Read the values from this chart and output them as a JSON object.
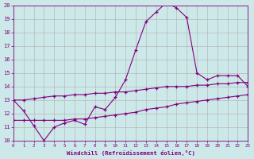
{
  "xlabel": "Windchill (Refroidissement éolien,°C)",
  "background_color": "#cde8e8",
  "line_color": "#800080",
  "xlim": [
    0,
    23
  ],
  "ylim": [
    10,
    20
  ],
  "xtick_labels": [
    "0",
    "1",
    "2",
    "3",
    "4",
    "5",
    "6",
    "7",
    "8",
    "9",
    "10",
    "11",
    "12",
    "13",
    "14",
    "15",
    "16",
    "17",
    "18",
    "19",
    "20",
    "21",
    "22",
    "23"
  ],
  "ytick_labels": [
    "10",
    "11",
    "12",
    "13",
    "14",
    "15",
    "16",
    "17",
    "18",
    "19",
    "20"
  ],
  "curve1_x": [
    0,
    1,
    2,
    3,
    4,
    5,
    6,
    7,
    8,
    9,
    10,
    11,
    12,
    13,
    14,
    15,
    16,
    17,
    18,
    19,
    20,
    21,
    22,
    23
  ],
  "curve1_y": [
    13.0,
    12.2,
    11.1,
    10.0,
    11.0,
    11.3,
    11.5,
    11.2,
    12.5,
    12.3,
    13.2,
    14.5,
    16.7,
    18.8,
    19.5,
    20.2,
    19.8,
    19.1,
    15.0,
    14.5,
    14.8,
    14.8,
    14.8,
    14.0
  ],
  "curve2_x": [
    0,
    1,
    2,
    3,
    4,
    5,
    6,
    7,
    8,
    9,
    10,
    11,
    12,
    13,
    14,
    15,
    16,
    17,
    18,
    19,
    20,
    21,
    22,
    23
  ],
  "curve2_y": [
    13.0,
    13.0,
    13.1,
    13.2,
    13.3,
    13.3,
    13.4,
    13.4,
    13.5,
    13.5,
    13.6,
    13.6,
    13.7,
    13.8,
    13.9,
    14.0,
    14.0,
    14.0,
    14.1,
    14.1,
    14.2,
    14.2,
    14.3,
    14.3
  ],
  "curve3_x": [
    0,
    1,
    2,
    3,
    4,
    5,
    6,
    7,
    8,
    9,
    10,
    11,
    12,
    13,
    14,
    15,
    16,
    17,
    18,
    19,
    20,
    21,
    22,
    23
  ],
  "curve3_y": [
    11.5,
    11.5,
    11.5,
    11.5,
    11.5,
    11.5,
    11.6,
    11.6,
    11.7,
    11.8,
    11.9,
    12.0,
    12.1,
    12.3,
    12.4,
    12.5,
    12.7,
    12.8,
    12.9,
    13.0,
    13.1,
    13.2,
    13.3,
    13.4
  ],
  "grid_color": "#b0b0b0",
  "figsize": [
    3.2,
    2.0
  ],
  "dpi": 100
}
